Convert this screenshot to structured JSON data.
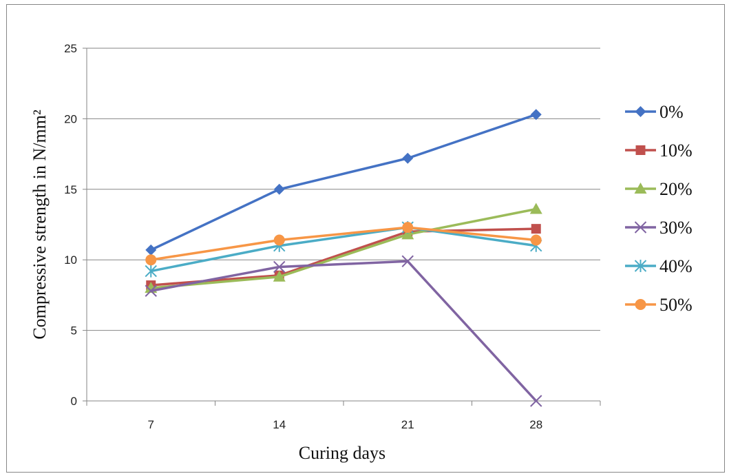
{
  "chart_data": {
    "type": "line",
    "title": "",
    "xlabel": "Curing days",
    "ylabel": "Compressive  strength in N/mm²",
    "categories": [
      "7",
      "14",
      "21",
      "28"
    ],
    "ylim": [
      0,
      25
    ],
    "yticks": [
      0,
      5,
      10,
      15,
      20,
      25
    ],
    "grid": "horizontal",
    "legend_position": "right",
    "series": [
      {
        "name": "0%",
        "color": "#4472C4",
        "marker": "diamond",
        "values": [
          10.7,
          15.0,
          17.2,
          20.3
        ]
      },
      {
        "name": "10%",
        "color": "#C0504D",
        "marker": "square",
        "values": [
          8.2,
          8.9,
          12.0,
          12.2
        ]
      },
      {
        "name": "20%",
        "color": "#9BBB59",
        "marker": "triangle",
        "values": [
          8.0,
          8.8,
          11.8,
          13.6
        ]
      },
      {
        "name": "30%",
        "color": "#8064A2",
        "marker": "x",
        "values": [
          7.8,
          9.5,
          9.9,
          0.0
        ]
      },
      {
        "name": "40%",
        "color": "#4BACC6",
        "marker": "star",
        "values": [
          9.2,
          11.0,
          12.3,
          11.0
        ]
      },
      {
        "name": "50%",
        "color": "#F79646",
        "marker": "circle",
        "values": [
          10.0,
          11.4,
          12.3,
          11.4
        ]
      }
    ]
  }
}
